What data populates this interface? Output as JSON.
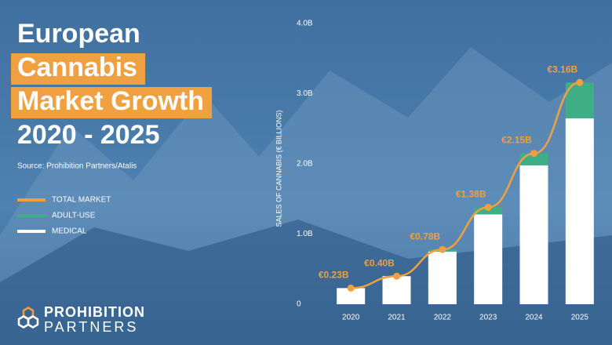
{
  "chart_data": {
    "type": "bar",
    "stacked": true,
    "title": [
      "European",
      "Cannabis",
      "Market Growth",
      "2020 - 2025"
    ],
    "title_highlight": [
      false,
      true,
      true,
      false
    ],
    "subtitle": "Source: Prohibition Partners/Atalis",
    "ylabel": "SALES OF CANNABIS (€ BILLIONS)",
    "categories": [
      "2020",
      "2021",
      "2022",
      "2023",
      "2024",
      "2025"
    ],
    "series": [
      {
        "name": "MEDICAL",
        "color": "#ffffff",
        "values": [
          0.23,
          0.4,
          0.75,
          1.28,
          1.98,
          2.65
        ]
      },
      {
        "name": "ADULT-USE",
        "color": "#3fae86",
        "values": [
          0,
          0,
          0.03,
          0.1,
          0.17,
          0.51
        ]
      },
      {
        "name": "TOTAL MARKET",
        "type": "line",
        "color": "#f0a040",
        "values": [
          0.23,
          0.4,
          0.78,
          1.38,
          2.15,
          3.16
        ],
        "value_labels": [
          "€0.23B",
          "€0.40B",
          "€0.78B",
          "€1.38B",
          "€2.15B",
          "€3.16B"
        ]
      }
    ],
    "legend_order": [
      2,
      1,
      0
    ],
    "ylim": [
      0,
      4
    ],
    "yticks": [
      0,
      {
        "value": 1,
        "label": "1.0B"
      },
      {
        "value": 2,
        "label": "2.0B"
      },
      {
        "value": 3,
        "label": "3.0B"
      },
      {
        "value": 4,
        "label": "4.0B"
      }
    ]
  },
  "brand": [
    "PROHIBITION",
    "PARTNERS"
  ]
}
